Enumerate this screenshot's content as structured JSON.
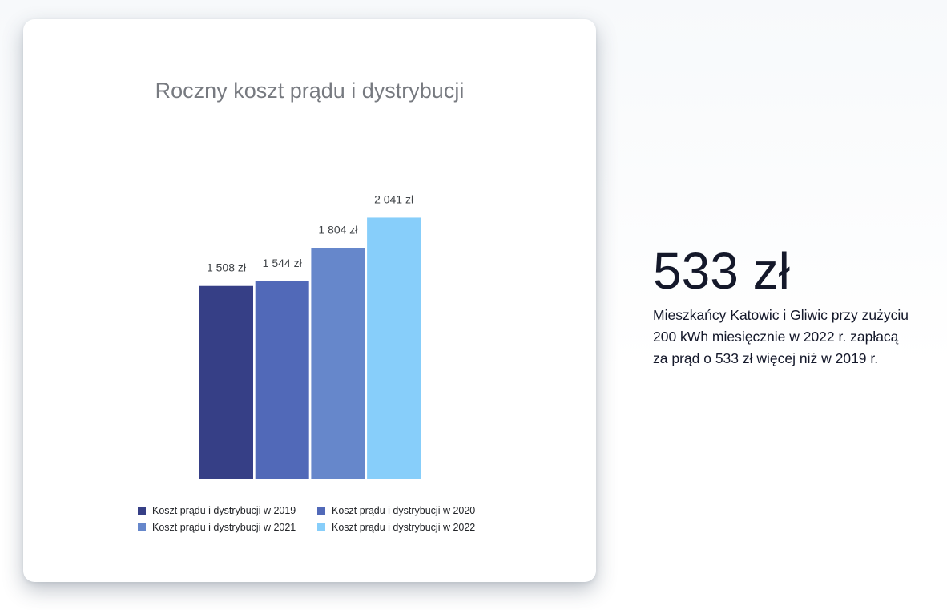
{
  "colors": {
    "series_2019": "#363f86",
    "series_2020": "#5169b8",
    "series_2021": "#6687cb",
    "series_2022": "#87cefa",
    "title": "#777a80",
    "big_number": "#14182a"
  },
  "chart_data": {
    "type": "bar",
    "title": "Roczny koszt prądu i dystrybucji",
    "xlabel": "",
    "ylabel": "",
    "ylim": [
      0,
      2200
    ],
    "grid": false,
    "legend_position": "bottom",
    "series": [
      {
        "name": "Koszt prądu i dystrybucji w 2019",
        "value": 1508,
        "label": "1 508 zł",
        "color": "#363f86"
      },
      {
        "name": "Koszt prądu i dystrybucji w 2020",
        "value": 1544,
        "label": "1 544 zł",
        "color": "#5169b8"
      },
      {
        "name": "Koszt prądu i dystrybucji w 2021",
        "value": 1804,
        "label": "1 804 zł",
        "color": "#6687cb"
      },
      {
        "name": "Koszt prądu i dystrybucji w 2022",
        "value": 2041,
        "label": "2 041 zł",
        "color": "#87cefa"
      }
    ]
  },
  "highlight": {
    "value": "533 zł",
    "description_lines": [
      "Mieszkańcy Katowic i Gliwic przy zużyciu",
      "200 kWh miesięcznie w 2022 r. zapłacą",
      "za prąd o 533 zł więcej niż w 2019 r."
    ]
  }
}
